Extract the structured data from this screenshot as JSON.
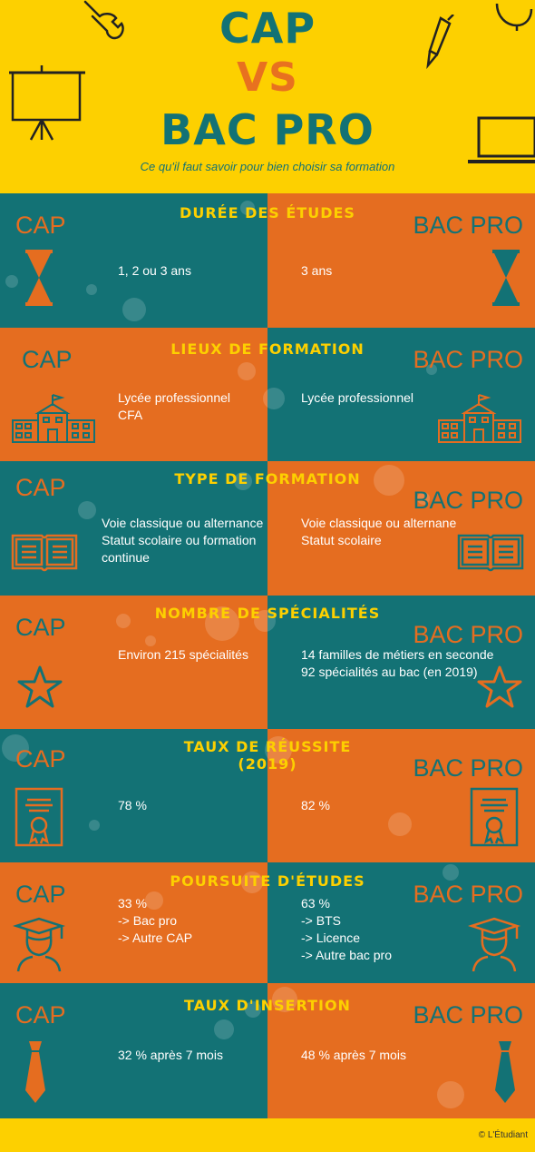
{
  "header": {
    "title_cap": "CAP",
    "title_vs": "VS",
    "title_bac": "BAC PRO",
    "subtitle": "Ce qu'il faut savoir pour bien choisir sa formation"
  },
  "labels": {
    "cap": "CAP",
    "bac": "BAC PRO"
  },
  "sections": [
    {
      "title": "DURÉE DES ÉTUDES",
      "cap": [
        "1, 2 ou 3 ans"
      ],
      "bac": [
        "3 ans"
      ],
      "icon": "hourglass-icon"
    },
    {
      "title": "LIEUX DE FORMATION",
      "cap": [
        "Lycée professionnel",
        "CFA"
      ],
      "bac": [
        "Lycée professionnel"
      ],
      "icon": "school-building-icon"
    },
    {
      "title": "TYPE DE FORMATION",
      "cap": [
        "Voie classique ou alternance",
        "Statut scolaire ou formation continue"
      ],
      "bac": [
        "Voie classique ou alternane",
        "Statut scolaire"
      ],
      "icon": "open-book-icon"
    },
    {
      "title": "NOMBRE DE SPÉCIALITÉS",
      "cap": [
        "Environ 215 spécialités"
      ],
      "bac": [
        "14 familles de métiers en seconde",
        "92 spécialités au bac (en 2019)"
      ],
      "icon": "star-icon"
    },
    {
      "title": "TAUX DE RÉUSSITE (2019)",
      "cap": [
        "78 %"
      ],
      "bac": [
        "82 %"
      ],
      "icon": "diploma-icon"
    },
    {
      "title": "POURSUITE D'ÉTUDES",
      "cap": [
        "33 %",
        "-> Bac pro",
        "-> Autre CAP"
      ],
      "bac": [
        "63 %",
        "-> BTS",
        "-> Licence",
        "-> Autre bac pro"
      ],
      "icon": "graduate-icon"
    },
    {
      "title": "TAUX D'INSERTION",
      "cap": [
        "32 % après 7 mois"
      ],
      "bac": [
        "48 % après 7 mois"
      ],
      "icon": "necktie-icon"
    }
  ],
  "footer": {
    "copyright": "© L'Étudiant"
  },
  "colors": {
    "teal": "#137275",
    "orange": "#e56d20",
    "yellow": "#fdd000"
  }
}
